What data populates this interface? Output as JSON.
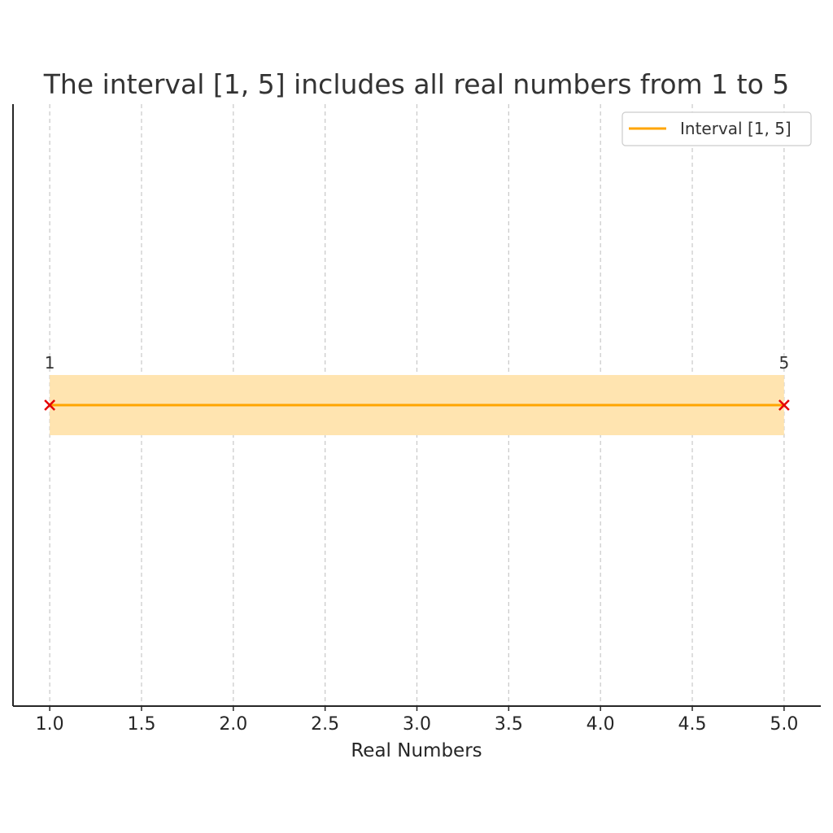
{
  "chart_data": {
    "type": "line",
    "title": "The interval [1, 5] includes all real numbers from 1 to 5",
    "xlabel": "Real Numbers",
    "ylabel": "",
    "xlim": [
      0.8,
      5.2
    ],
    "ylim": [
      -1,
      1
    ],
    "x_ticks": [
      "1.0",
      "1.5",
      "2.0",
      "2.5",
      "3.0",
      "3.5",
      "4.0",
      "4.5",
      "5.0"
    ],
    "grid": true,
    "legend": {
      "placement": "top-right",
      "entries": [
        "Interval [1, 5]"
      ]
    },
    "series": [
      {
        "name": "Interval [1, 5]",
        "x": [
          1,
          5
        ],
        "y": [
          0,
          0
        ],
        "color": "#FFA500"
      }
    ],
    "shaded_region": {
      "x": [
        1,
        5
      ],
      "y": [
        -0.1,
        0.1
      ],
      "color": "#FFE4B0"
    },
    "endpoint_markers": [
      {
        "x": 1,
        "y": 0,
        "label": "1",
        "marker": "x",
        "color": "#E50000"
      },
      {
        "x": 5,
        "y": 0,
        "label": "5",
        "marker": "x",
        "color": "#E50000"
      }
    ]
  }
}
